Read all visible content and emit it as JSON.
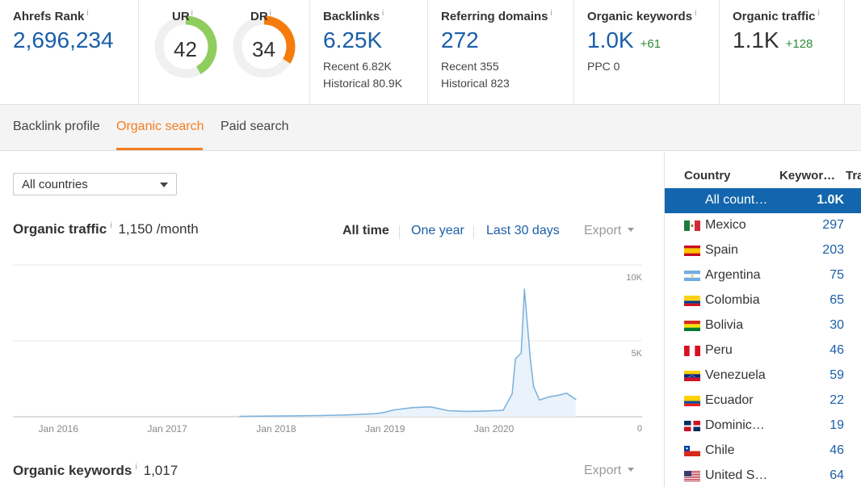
{
  "metrics": {
    "ahrefs_rank": {
      "label": "Ahrefs Rank",
      "info": "i",
      "value": "2,696,234"
    },
    "ur": {
      "label": "UR",
      "info": "i",
      "value": "42",
      "fraction": 0.42,
      "color": "#8fcd5c"
    },
    "dr": {
      "label": "DR",
      "info": "i",
      "value": "34",
      "fraction": 0.34,
      "color": "#f57c0c"
    },
    "backlinks": {
      "label": "Backlinks",
      "info": "i",
      "value": "6.25K",
      "recent": "Recent 6.82K",
      "historical": "Historical 80.9K"
    },
    "referring_domains": {
      "label": "Referring domains",
      "info": "i",
      "value": "272",
      "recent": "Recent 355",
      "historical": "Historical 823"
    },
    "organic_keywords": {
      "label": "Organic keywords",
      "info": "i",
      "value": "1.0K",
      "delta": "+61",
      "ppc": "PPC 0"
    },
    "organic_traffic": {
      "label": "Organic traffic",
      "info": "i",
      "value": "1.1K",
      "delta": "+128"
    }
  },
  "tabs": [
    {
      "label": "Backlink profile",
      "active": false
    },
    {
      "label": "Organic search",
      "active": true
    },
    {
      "label": "Paid search",
      "active": false
    }
  ],
  "filter": {
    "country_select": "All countries"
  },
  "traffic": {
    "title": "Organic traffic",
    "info": "i",
    "value": "1,150 /month",
    "ranges": [
      "All time",
      "One year",
      "Last 30 days"
    ],
    "active_range": "All time",
    "export_label": "Export"
  },
  "keywords_section": {
    "title": "Organic keywords",
    "info": "i",
    "value": "1,017",
    "export_label": "Export"
  },
  "chart_data": {
    "type": "area",
    "ylim": [
      0,
      10000
    ],
    "y_tick_labels": [
      "10K",
      "5K",
      "0"
    ],
    "x_tick_labels": [
      "Jan 2016",
      "Jan 2017",
      "Jan 2018",
      "Jan 2019",
      "Jan 2020"
    ],
    "x": [
      "2017-09",
      "2017-12",
      "2018-03",
      "2018-06",
      "2018-09",
      "2018-12",
      "2019-01",
      "2019-02",
      "2019-04",
      "2019-06",
      "2019-08",
      "2019-10",
      "2019-12",
      "2020-01",
      "2020-02",
      "2020-03",
      "2020-03",
      "2020-04",
      "2020-04",
      "2020-05",
      "2020-05",
      "2020-06",
      "2020-07",
      "2020-08",
      "2020-09",
      "2020-10"
    ],
    "series": [
      {
        "values": [
          20,
          40,
          60,
          80,
          120,
          200,
          300,
          450,
          600,
          650,
          400,
          350,
          380,
          400,
          420,
          1500,
          3800,
          4200,
          8400,
          3800,
          2000,
          1100,
          1300,
          1400,
          1550,
          1150
        ]
      }
    ],
    "color": "#7fb3de",
    "grid": true
  },
  "country_table": {
    "headers": [
      "Country",
      "Keywor…",
      "Tra"
    ],
    "rows": [
      {
        "name": "All count…",
        "value": "1.0K",
        "flag": "none",
        "selected": true
      },
      {
        "name": "Mexico",
        "value": "297",
        "flag": "mexico"
      },
      {
        "name": "Spain",
        "value": "203",
        "flag": "spain"
      },
      {
        "name": "Argentina",
        "value": "75",
        "flag": "argentina"
      },
      {
        "name": "Colombia",
        "value": "65",
        "flag": "colombia"
      },
      {
        "name": "Bolivia",
        "value": "30",
        "flag": "bolivia"
      },
      {
        "name": "Peru",
        "value": "46",
        "flag": "peru"
      },
      {
        "name": "Venezuela",
        "value": "59",
        "flag": "venezuela"
      },
      {
        "name": "Ecuador",
        "value": "22",
        "flag": "ecuador"
      },
      {
        "name": "Dominic…",
        "value": "19",
        "flag": "dominican"
      },
      {
        "name": "Chile",
        "value": "46",
        "flag": "chile"
      },
      {
        "name": "United S…",
        "value": "64",
        "flag": "usa"
      }
    ]
  }
}
